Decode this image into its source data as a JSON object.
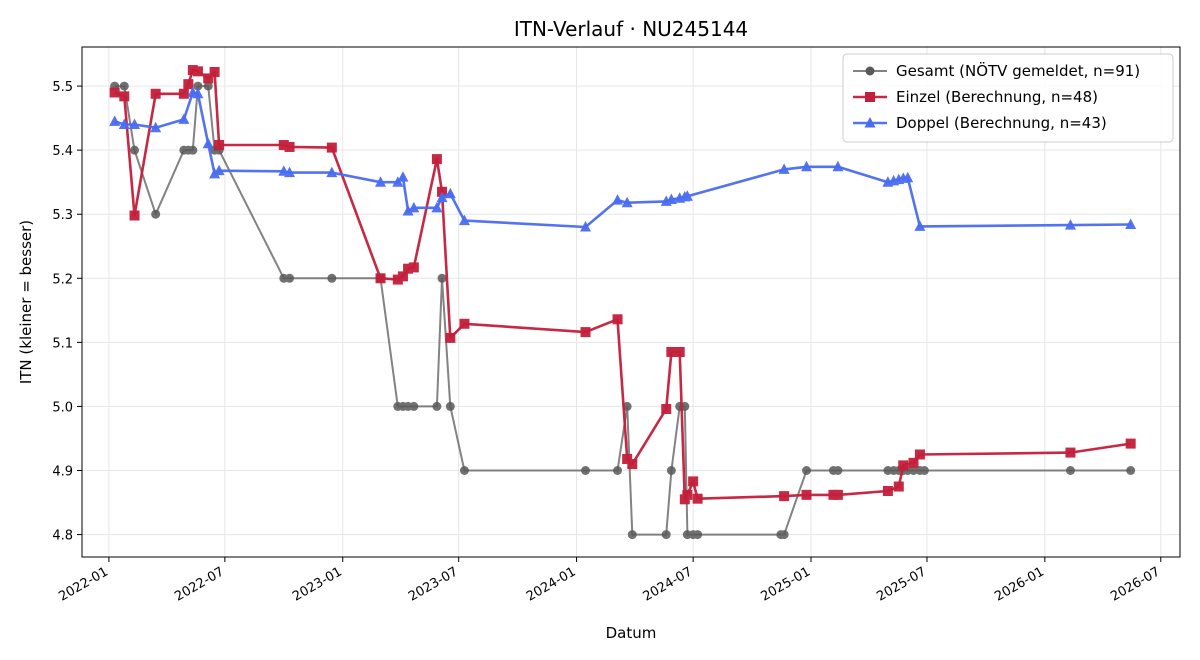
{
  "chart_data": {
    "type": "line",
    "title": "ITN-Verlauf · NU245144",
    "xlabel": "Datum",
    "ylabel": "ITN  (kleiner = besser)",
    "x_is_date": true,
    "xlim": [
      "2021-11-20",
      "2026-07-31"
    ],
    "ylim": [
      4.765,
      5.561
    ],
    "xticks": [
      "2022-01",
      "2022-07",
      "2023-01",
      "2023-07",
      "2024-01",
      "2024-07",
      "2025-01",
      "2025-07",
      "2026-01",
      "2026-07"
    ],
    "yticks": [
      "4.8",
      "4.9",
      "5.0",
      "5.1",
      "5.2",
      "5.3",
      "5.4",
      "5.5"
    ],
    "grid": true,
    "legend_position": "top-right",
    "series": [
      {
        "name": "Gesamt (NÖTV gemeldet, n=91)",
        "color": "#595959",
        "marker": "circle",
        "points": [
          [
            "2022-01-10",
            5.5
          ],
          [
            "2022-01-25",
            5.5
          ],
          [
            "2022-02-10",
            5.4
          ],
          [
            "2022-03-15",
            5.3
          ],
          [
            "2022-04-28",
            5.4
          ],
          [
            "2022-05-05",
            5.4
          ],
          [
            "2022-05-12",
            5.4
          ],
          [
            "2022-05-20",
            5.5
          ],
          [
            "2022-06-05",
            5.5
          ],
          [
            "2022-06-15",
            5.4
          ],
          [
            "2022-06-22",
            5.4
          ],
          [
            "2022-10-01",
            5.2
          ],
          [
            "2022-10-10",
            5.2
          ],
          [
            "2022-12-15",
            5.2
          ],
          [
            "2023-03-01",
            5.2
          ],
          [
            "2023-03-28",
            5.0
          ],
          [
            "2023-04-05",
            5.0
          ],
          [
            "2023-04-13",
            5.0
          ],
          [
            "2023-04-22",
            5.0
          ],
          [
            "2023-05-28",
            5.0
          ],
          [
            "2023-06-05",
            5.2
          ],
          [
            "2023-06-18",
            5.0
          ],
          [
            "2023-07-10",
            4.9
          ],
          [
            "2024-01-15",
            4.9
          ],
          [
            "2024-03-05",
            4.9
          ],
          [
            "2024-03-20",
            5.0
          ],
          [
            "2024-03-28",
            4.8
          ],
          [
            "2024-05-20",
            4.8
          ],
          [
            "2024-05-28",
            4.9
          ],
          [
            "2024-06-10",
            5.0
          ],
          [
            "2024-06-18",
            5.0
          ],
          [
            "2024-06-22",
            4.8
          ],
          [
            "2024-07-01",
            4.8
          ],
          [
            "2024-07-08",
            4.8
          ],
          [
            "2024-11-15",
            4.8
          ],
          [
            "2024-11-20",
            4.8
          ],
          [
            "2024-12-25",
            4.9
          ],
          [
            "2025-02-05",
            4.9
          ],
          [
            "2025-02-12",
            4.9
          ],
          [
            "2025-05-01",
            4.9
          ],
          [
            "2025-05-10",
            4.9
          ],
          [
            "2025-05-18",
            4.9
          ],
          [
            "2025-05-25",
            4.9
          ],
          [
            "2025-06-01",
            4.9
          ],
          [
            "2025-06-10",
            4.9
          ],
          [
            "2025-06-20",
            4.9
          ],
          [
            "2025-06-27",
            4.9
          ],
          [
            "2026-02-10",
            4.9
          ],
          [
            "2026-05-15",
            4.9
          ]
        ]
      },
      {
        "name": "Einzel (Berechnung, n=48)",
        "color": "#c41e3a",
        "marker": "square",
        "points": [
          [
            "2022-01-10",
            5.49
          ],
          [
            "2022-01-25",
            5.484
          ],
          [
            "2022-02-10",
            5.298
          ],
          [
            "2022-03-15",
            5.488
          ],
          [
            "2022-04-28",
            5.488
          ],
          [
            "2022-05-05",
            5.503
          ],
          [
            "2022-05-12",
            5.525
          ],
          [
            "2022-05-20",
            5.523
          ],
          [
            "2022-06-05",
            5.512
          ],
          [
            "2022-06-15",
            5.522
          ],
          [
            "2022-06-22",
            5.408
          ],
          [
            "2022-10-01",
            5.408
          ],
          [
            "2022-10-10",
            5.405
          ],
          [
            "2022-12-15",
            5.404
          ],
          [
            "2023-03-01",
            5.2
          ],
          [
            "2023-03-28",
            5.198
          ],
          [
            "2023-04-05",
            5.203
          ],
          [
            "2023-04-13",
            5.215
          ],
          [
            "2023-04-22",
            5.217
          ],
          [
            "2023-05-28",
            5.386
          ],
          [
            "2023-06-05",
            5.335
          ],
          [
            "2023-06-18",
            5.107
          ],
          [
            "2023-07-10",
            5.129
          ],
          [
            "2024-01-15",
            5.116
          ],
          [
            "2024-03-05",
            5.136
          ],
          [
            "2024-03-20",
            4.918
          ],
          [
            "2024-03-28",
            4.91
          ],
          [
            "2024-05-20",
            4.996
          ],
          [
            "2024-05-28",
            5.085
          ],
          [
            "2024-06-10",
            5.085
          ],
          [
            "2024-06-18",
            4.855
          ],
          [
            "2024-06-22",
            4.862
          ],
          [
            "2024-07-01",
            4.883
          ],
          [
            "2024-07-08",
            4.856
          ],
          [
            "2024-11-20",
            4.86
          ],
          [
            "2024-12-25",
            4.862
          ],
          [
            "2025-02-05",
            4.862
          ],
          [
            "2025-02-12",
            4.862
          ],
          [
            "2025-05-01",
            4.868
          ],
          [
            "2025-05-18",
            4.875
          ],
          [
            "2025-05-25",
            4.908
          ],
          [
            "2025-06-10",
            4.912
          ],
          [
            "2025-06-20",
            4.925
          ],
          [
            "2026-02-10",
            4.928
          ],
          [
            "2026-05-15",
            4.942
          ]
        ]
      },
      {
        "name": "Doppel (Berechnung, n=43)",
        "color": "#4a6cf0",
        "marker": "triangle",
        "points": [
          [
            "2022-01-10",
            5.445
          ],
          [
            "2022-01-25",
            5.44
          ],
          [
            "2022-02-10",
            5.44
          ],
          [
            "2022-03-15",
            5.435
          ],
          [
            "2022-04-28",
            5.448
          ],
          [
            "2022-05-12",
            5.49
          ],
          [
            "2022-05-20",
            5.488
          ],
          [
            "2022-06-05",
            5.41
          ],
          [
            "2022-06-15",
            5.363
          ],
          [
            "2022-06-22",
            5.368
          ],
          [
            "2022-10-01",
            5.367
          ],
          [
            "2022-10-10",
            5.365
          ],
          [
            "2022-12-15",
            5.365
          ],
          [
            "2023-03-01",
            5.35
          ],
          [
            "2023-03-28",
            5.35
          ],
          [
            "2023-04-05",
            5.358
          ],
          [
            "2023-04-13",
            5.305
          ],
          [
            "2023-04-22",
            5.31
          ],
          [
            "2023-05-28",
            5.31
          ],
          [
            "2023-06-05",
            5.326
          ],
          [
            "2023-06-18",
            5.332
          ],
          [
            "2023-07-10",
            5.29
          ],
          [
            "2024-01-15",
            5.28
          ],
          [
            "2024-03-05",
            5.322
          ],
          [
            "2024-03-20",
            5.318
          ],
          [
            "2024-05-20",
            5.32
          ],
          [
            "2024-05-28",
            5.323
          ],
          [
            "2024-06-10",
            5.325
          ],
          [
            "2024-06-18",
            5.327
          ],
          [
            "2024-06-22",
            5.328
          ],
          [
            "2024-11-20",
            5.37
          ],
          [
            "2024-12-25",
            5.374
          ],
          [
            "2025-02-12",
            5.374
          ],
          [
            "2025-05-01",
            5.35
          ],
          [
            "2025-05-10",
            5.352
          ],
          [
            "2025-05-18",
            5.354
          ],
          [
            "2025-05-25",
            5.356
          ],
          [
            "2025-06-01",
            5.357
          ],
          [
            "2025-06-20",
            5.281
          ],
          [
            "2026-02-10",
            5.283
          ],
          [
            "2026-05-15",
            5.284
          ]
        ]
      }
    ]
  }
}
